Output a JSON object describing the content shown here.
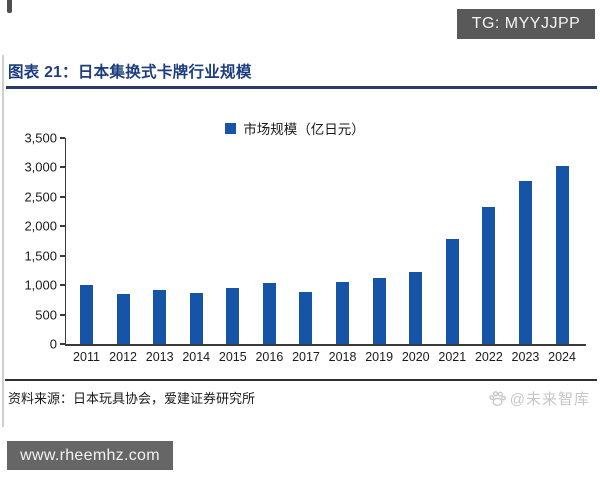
{
  "header": {
    "tg_badge": "TG: MYYJJPP",
    "figure_title": "图表 21：日本集换式卡牌行业规模"
  },
  "chart_data": {
    "type": "bar",
    "title": "日本集换式卡牌行业规模",
    "legend": "市场规模（亿日元）",
    "legend_position": "top-center",
    "categories": [
      "2011",
      "2012",
      "2013",
      "2014",
      "2015",
      "2016",
      "2017",
      "2018",
      "2019",
      "2020",
      "2021",
      "2022",
      "2023",
      "2024"
    ],
    "values": [
      1010,
      855,
      925,
      865,
      950,
      1035,
      875,
      1060,
      1115,
      1215,
      1780,
      2330,
      2770,
      3020
    ],
    "ylim": [
      0,
      3500
    ],
    "ytick_step": 500,
    "ytick_labels": [
      "3,500",
      "3,000",
      "2,500",
      "2,000",
      "1,500",
      "1,000",
      "500",
      "0"
    ],
    "grid": false,
    "bar_color": "#1654a8"
  },
  "footer": {
    "source": "资料来源：日本玩具协会，爱建证券研究所",
    "watermark": "@未来智库",
    "site_badge": "www.rheemhz.com"
  },
  "colors": {
    "accent_blue": "#1654a8",
    "title_navy": "#1c3d7f",
    "badge_gray": "#595959",
    "watermark_gray": "#c6c6c6",
    "axis": "#3a3a3a"
  }
}
